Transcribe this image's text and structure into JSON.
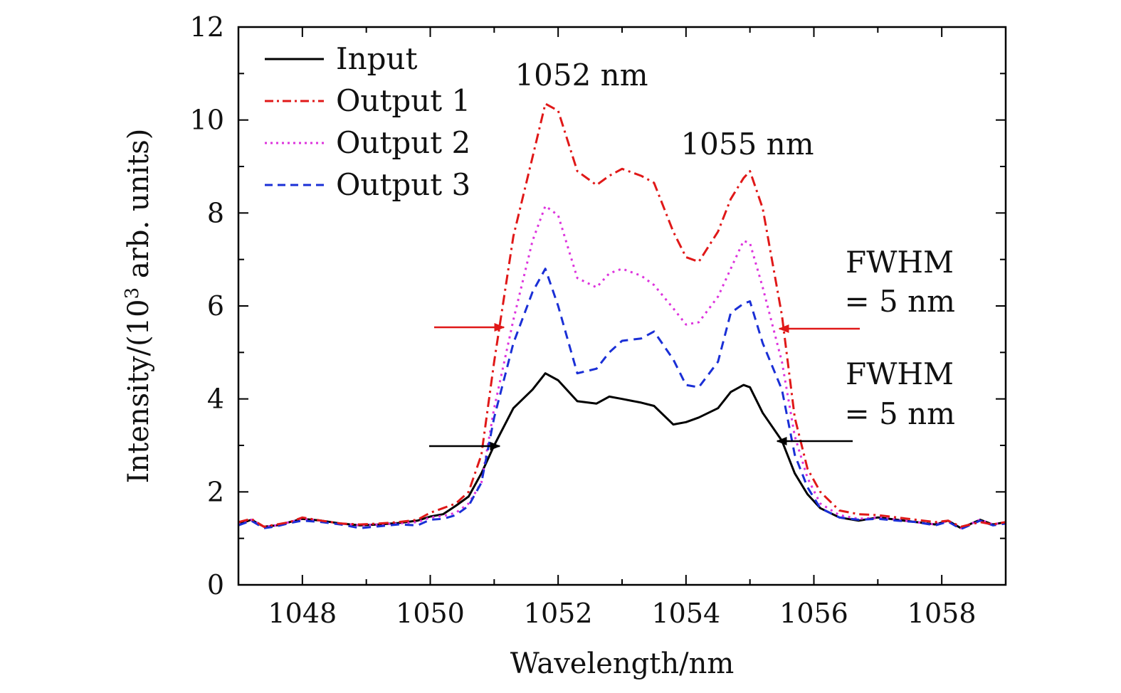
{
  "chart_data": {
    "type": "line",
    "xlabel": "Wavelength/nm",
    "ylabel": {
      "prefix": "Intensity/(10",
      "sup": "3",
      "suffix": " arb. units)"
    },
    "xlim": [
      1047,
      1059
    ],
    "ylim": [
      0,
      12
    ],
    "xticks": [
      1048,
      1050,
      1052,
      1054,
      1056,
      1058
    ],
    "yticks": [
      0,
      2,
      4,
      6,
      8,
      10,
      12
    ],
    "legend_position": "top-left",
    "x": [
      1047.0,
      1047.2,
      1047.4,
      1047.6,
      1047.8,
      1048.0,
      1048.3,
      1048.6,
      1048.9,
      1049.2,
      1049.5,
      1049.8,
      1050.0,
      1050.2,
      1050.4,
      1050.6,
      1050.8,
      1051.0,
      1051.3,
      1051.6,
      1051.8,
      1052.0,
      1052.3,
      1052.6,
      1052.8,
      1053.0,
      1053.3,
      1053.5,
      1053.8,
      1054.0,
      1054.2,
      1054.5,
      1054.7,
      1054.9,
      1055.0,
      1055.2,
      1055.5,
      1055.7,
      1055.9,
      1056.1,
      1056.4,
      1056.7,
      1057.0,
      1057.3,
      1057.6,
      1057.9,
      1058.1,
      1058.3,
      1058.6,
      1058.8,
      1059.0
    ],
    "series": [
      {
        "name": "Input",
        "color": "#000000",
        "dash": "solid",
        "values": [
          1.3,
          1.4,
          1.25,
          1.28,
          1.35,
          1.42,
          1.38,
          1.32,
          1.28,
          1.3,
          1.33,
          1.38,
          1.47,
          1.52,
          1.7,
          1.9,
          2.4,
          3.0,
          3.8,
          4.2,
          4.55,
          4.4,
          3.95,
          3.9,
          4.05,
          4.0,
          3.92,
          3.85,
          3.45,
          3.5,
          3.6,
          3.8,
          4.15,
          4.3,
          4.25,
          3.7,
          3.1,
          2.4,
          1.95,
          1.65,
          1.45,
          1.38,
          1.45,
          1.4,
          1.35,
          1.3,
          1.38,
          1.22,
          1.4,
          1.3,
          1.35
        ]
      },
      {
        "name": "Output 1",
        "color": "#e01818",
        "dash": "dashdot",
        "values": [
          1.35,
          1.42,
          1.25,
          1.3,
          1.35,
          1.45,
          1.38,
          1.32,
          1.3,
          1.32,
          1.35,
          1.4,
          1.55,
          1.65,
          1.75,
          2.0,
          2.8,
          4.8,
          7.5,
          9.2,
          10.35,
          10.2,
          8.9,
          8.6,
          8.8,
          8.95,
          8.8,
          8.65,
          7.6,
          7.05,
          6.95,
          7.6,
          8.3,
          8.75,
          8.9,
          8.1,
          5.8,
          3.6,
          2.5,
          2.0,
          1.6,
          1.52,
          1.5,
          1.45,
          1.4,
          1.35,
          1.38,
          1.25,
          1.35,
          1.3,
          1.35
        ]
      },
      {
        "name": "Output 2",
        "color": "#dd33dd",
        "dash": "dotted",
        "values": [
          1.3,
          1.4,
          1.25,
          1.28,
          1.35,
          1.42,
          1.38,
          1.32,
          1.28,
          1.3,
          1.32,
          1.35,
          1.45,
          1.48,
          1.55,
          1.75,
          2.2,
          3.8,
          5.7,
          7.4,
          8.15,
          7.95,
          6.6,
          6.4,
          6.7,
          6.8,
          6.65,
          6.45,
          5.95,
          5.6,
          5.65,
          6.2,
          6.8,
          7.4,
          7.35,
          6.4,
          4.8,
          3.2,
          2.3,
          1.75,
          1.5,
          1.42,
          1.45,
          1.4,
          1.35,
          1.3,
          1.38,
          1.22,
          1.4,
          1.3,
          1.35
        ]
      },
      {
        "name": "Output 3",
        "color": "#1a2fd6",
        "dash": "dashed",
        "values": [
          1.28,
          1.38,
          1.22,
          1.26,
          1.33,
          1.38,
          1.35,
          1.3,
          1.22,
          1.26,
          1.3,
          1.28,
          1.4,
          1.42,
          1.5,
          1.7,
          2.2,
          3.6,
          5.2,
          6.3,
          6.8,
          6.0,
          4.55,
          4.65,
          5.0,
          5.25,
          5.3,
          5.45,
          4.85,
          4.3,
          4.25,
          4.8,
          5.85,
          6.05,
          6.1,
          5.2,
          4.2,
          2.8,
          2.1,
          1.65,
          1.45,
          1.4,
          1.42,
          1.38,
          1.35,
          1.28,
          1.36,
          1.2,
          1.38,
          1.28,
          1.32
        ]
      }
    ],
    "annotations": {
      "peak1": "1052 nm",
      "peak2": "1055 nm",
      "fwhm_output": [
        "FWHM",
        "= 5 nm"
      ],
      "fwhm_input": [
        "FWHM",
        "= 5 nm"
      ]
    }
  }
}
